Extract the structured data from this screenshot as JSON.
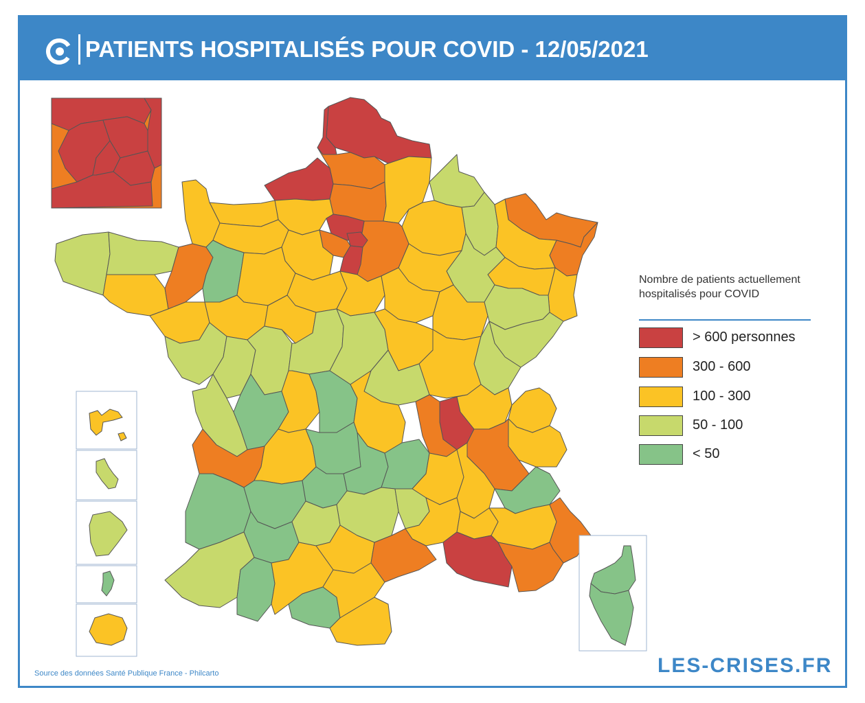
{
  "header": {
    "title": "PATIENTS HOSPITALISÉS POUR COVID - 12/05/2021",
    "logo_icon": "crises-logo-icon"
  },
  "legend": {
    "title": "Nombre de patients actuellement hospitalisés pour COVID",
    "classes": [
      {
        "label": "> 600 personnes",
        "color": "#c94141"
      },
      {
        "label": "300 - 600",
        "color": "#ee7e22"
      },
      {
        "label": "100 - 300",
        "color": "#fbc325"
      },
      {
        "label": "50 - 100",
        "color": "#c7d96c"
      },
      {
        "label": "< 50",
        "color": "#86c388"
      }
    ]
  },
  "footer": {
    "source": "Source des données Santé Publique France - Philcarto",
    "brand": "LES-CRISES.FR"
  }
}
